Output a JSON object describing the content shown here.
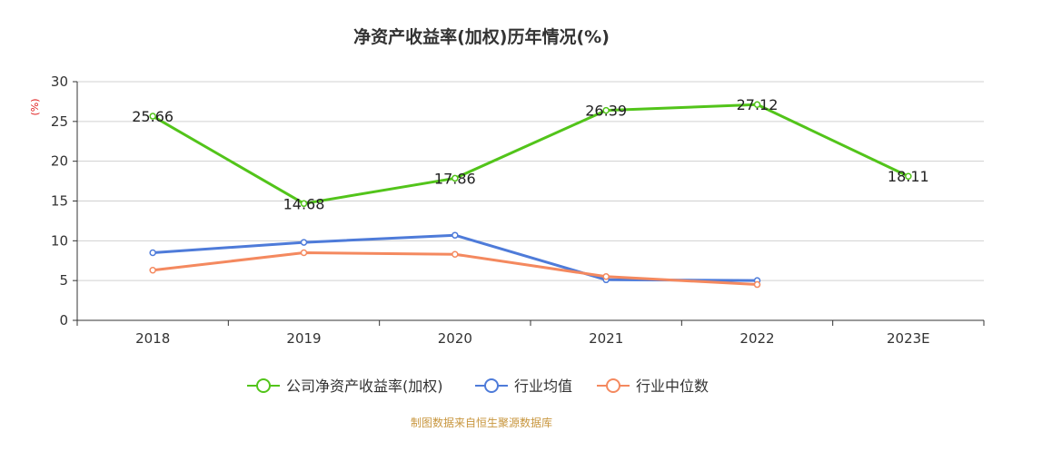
{
  "chart_data": {
    "type": "line",
    "title": "净资产收益率(加权)历年情况(%)",
    "ylabel": "(%)",
    "xlabel": "",
    "categories": [
      "2018",
      "2019",
      "2020",
      "2021",
      "2022",
      "2023E"
    ],
    "ylim": [
      0,
      30
    ],
    "yticks": [
      0,
      5,
      10,
      15,
      20,
      25,
      30
    ],
    "grid": true,
    "legend_position": "bottom-center",
    "series": [
      {
        "name": "公司净资产收益率(加权)",
        "color": "#52c41a",
        "values": [
          25.66,
          14.68,
          17.86,
          26.39,
          27.12,
          18.11
        ],
        "show_labels": true
      },
      {
        "name": "行业均值",
        "color": "#4e7bd9",
        "values": [
          8.5,
          9.8,
          10.7,
          5.1,
          5.0,
          null
        ],
        "show_labels": false
      },
      {
        "name": "行业中位数",
        "color": "#f4895f",
        "values": [
          6.3,
          8.5,
          8.3,
          5.5,
          4.5,
          null
        ],
        "show_labels": false
      }
    ]
  },
  "source_note": "制图数据来自恒生聚源数据库"
}
